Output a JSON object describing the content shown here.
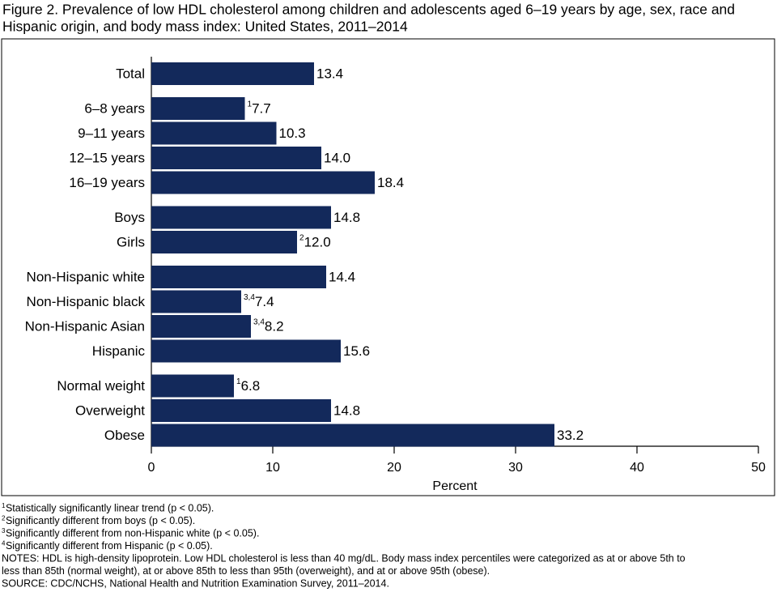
{
  "chart_data": {
    "type": "bar",
    "orientation": "horizontal",
    "title": [
      "Figure 2. Prevalence of low HDL cholesterol among children and adolescents aged 6–19 years by age, sex, race and",
      "Hispanic origin, and body mass index: United States, 2011–2014"
    ],
    "categories": [
      "Total",
      "6–8 years",
      "9–11 years",
      "12–15 years",
      "16–19 years",
      "Boys",
      "Girls",
      "Non-Hispanic white",
      "Non-Hispanic black",
      "Non-Hispanic Asian",
      "Hispanic",
      "Normal weight",
      "Overweight",
      "Obese"
    ],
    "values": [
      13.4,
      7.7,
      10.3,
      14.0,
      18.4,
      14.8,
      12.0,
      14.4,
      7.4,
      8.2,
      15.6,
      6.8,
      14.8,
      33.2
    ],
    "value_labels": [
      "13.4",
      "7.7",
      "10.3",
      "14.0",
      "18.4",
      "14.8",
      "12.0",
      "14.4",
      "7.4",
      "8.2",
      "15.6",
      "6.8",
      "14.8",
      "33.2"
    ],
    "markers": [
      null,
      "1",
      null,
      null,
      null,
      null,
      "2",
      null,
      "3,4",
      "3,4",
      null,
      "1",
      null,
      null
    ],
    "color": "#13295b",
    "xlim": [
      0,
      50
    ],
    "xticks": [
      0,
      10,
      20,
      30,
      40,
      50
    ],
    "xlabel": "Percent",
    "grid": false,
    "footnotes": [
      {
        "marker": "1",
        "text": "Statistically significantly linear trend (p < 0.05)."
      },
      {
        "marker": "2",
        "text": "Significantly different from boys (p < 0.05)."
      },
      {
        "marker": "3",
        "text": "Significantly different from non-Hispanic white (p < 0.05)."
      },
      {
        "marker": "4",
        "text": "Significantly different from Hispanic (p < 0.05)."
      }
    ],
    "notes": [
      "NOTES: HDL is high-density lipoprotein. Low HDL cholesterol is less than 40 mg/dL. Body mass index percentiles were categorized as at or above 5th to",
      "less than 85th (normal weight), at or above 85th to less than 95th (overweight), and at or above 95th (obese)."
    ],
    "source": "SOURCE: CDC/NCHS, National Health and Nutrition Examination Survey, 2011–2014."
  }
}
